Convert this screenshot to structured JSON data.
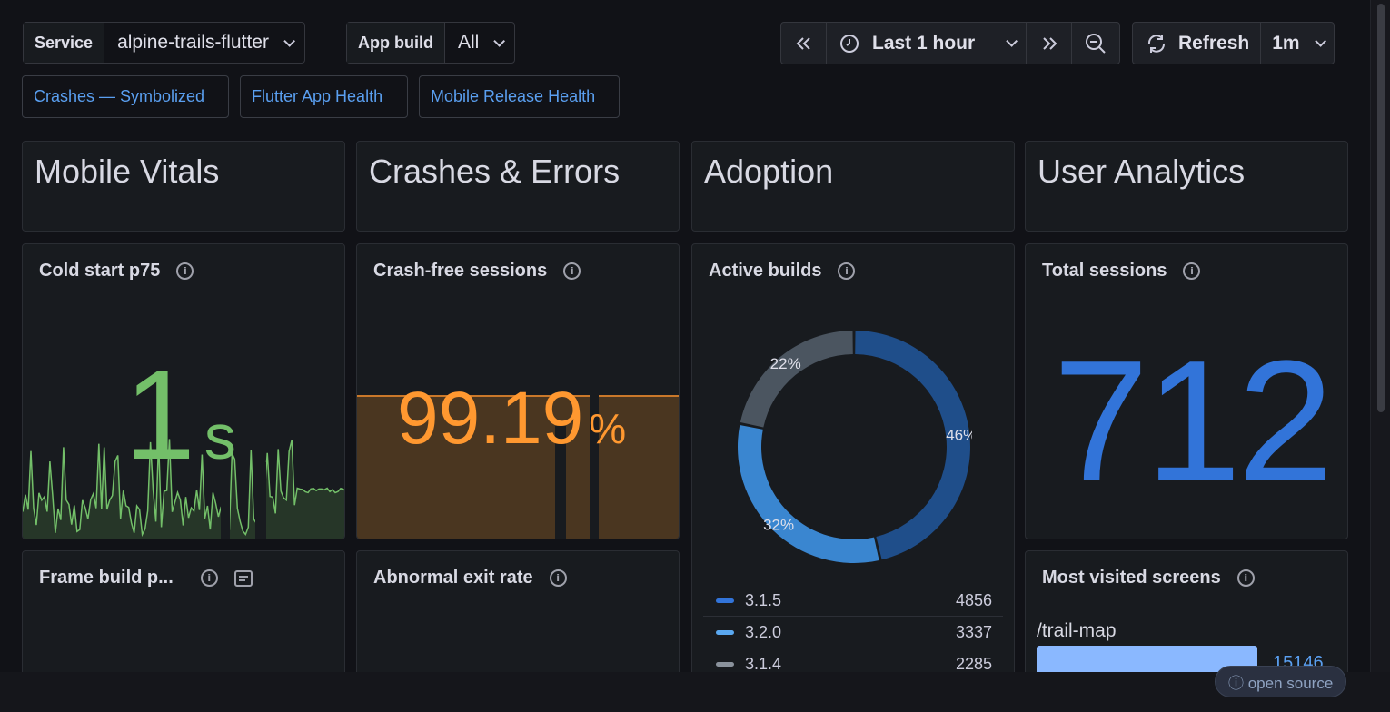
{
  "vars": {
    "service_label": "Service",
    "service_value": "alpine-trails-flutter",
    "build_label": "App build",
    "build_value": "All"
  },
  "time": {
    "range": "Last 1 hour",
    "refresh_label": "Refresh",
    "refresh_interval": "1m"
  },
  "links": [
    "Crashes — Symbolized",
    "Flutter App Health",
    "Mobile Release Health"
  ],
  "sections": [
    "Mobile Vitals",
    "Crashes & Errors",
    "Adoption",
    "User Analytics"
  ],
  "panels": {
    "cold_start": {
      "title": "Cold start p75",
      "value": "1",
      "unit": "s"
    },
    "crash_free": {
      "title": "Crash-free sessions",
      "value": "99.19",
      "unit": "%"
    },
    "active_builds": {
      "title": "Active builds"
    },
    "total_sessions": {
      "title": "Total sessions",
      "value": "712"
    },
    "frame_build": {
      "title": "Frame build p..."
    },
    "abnormal_exit": {
      "title": "Abnormal exit rate"
    },
    "most_visited": {
      "title": "Most visited screens",
      "rows": [
        {
          "screen": "/trail-map",
          "value": "15146",
          "fraction": 0.9
        }
      ]
    }
  },
  "chart_data": {
    "type": "pie",
    "title": "Active builds",
    "labels": [
      "3.1.5",
      "3.2.0",
      "3.1.4"
    ],
    "values": [
      4856,
      3337,
      2285
    ],
    "percent_labels": [
      "46%",
      "32%",
      "22%"
    ],
    "colors": [
      "#1f4e8a",
      "#3a86d0",
      "#4b5560"
    ],
    "legend": "bottom"
  },
  "colors": {
    "green": "#73bf69",
    "orange": "#ff9830",
    "blue": "#3274d9",
    "link": "#5a9ff0"
  },
  "footer": {
    "badge": "ⓘ open source"
  }
}
